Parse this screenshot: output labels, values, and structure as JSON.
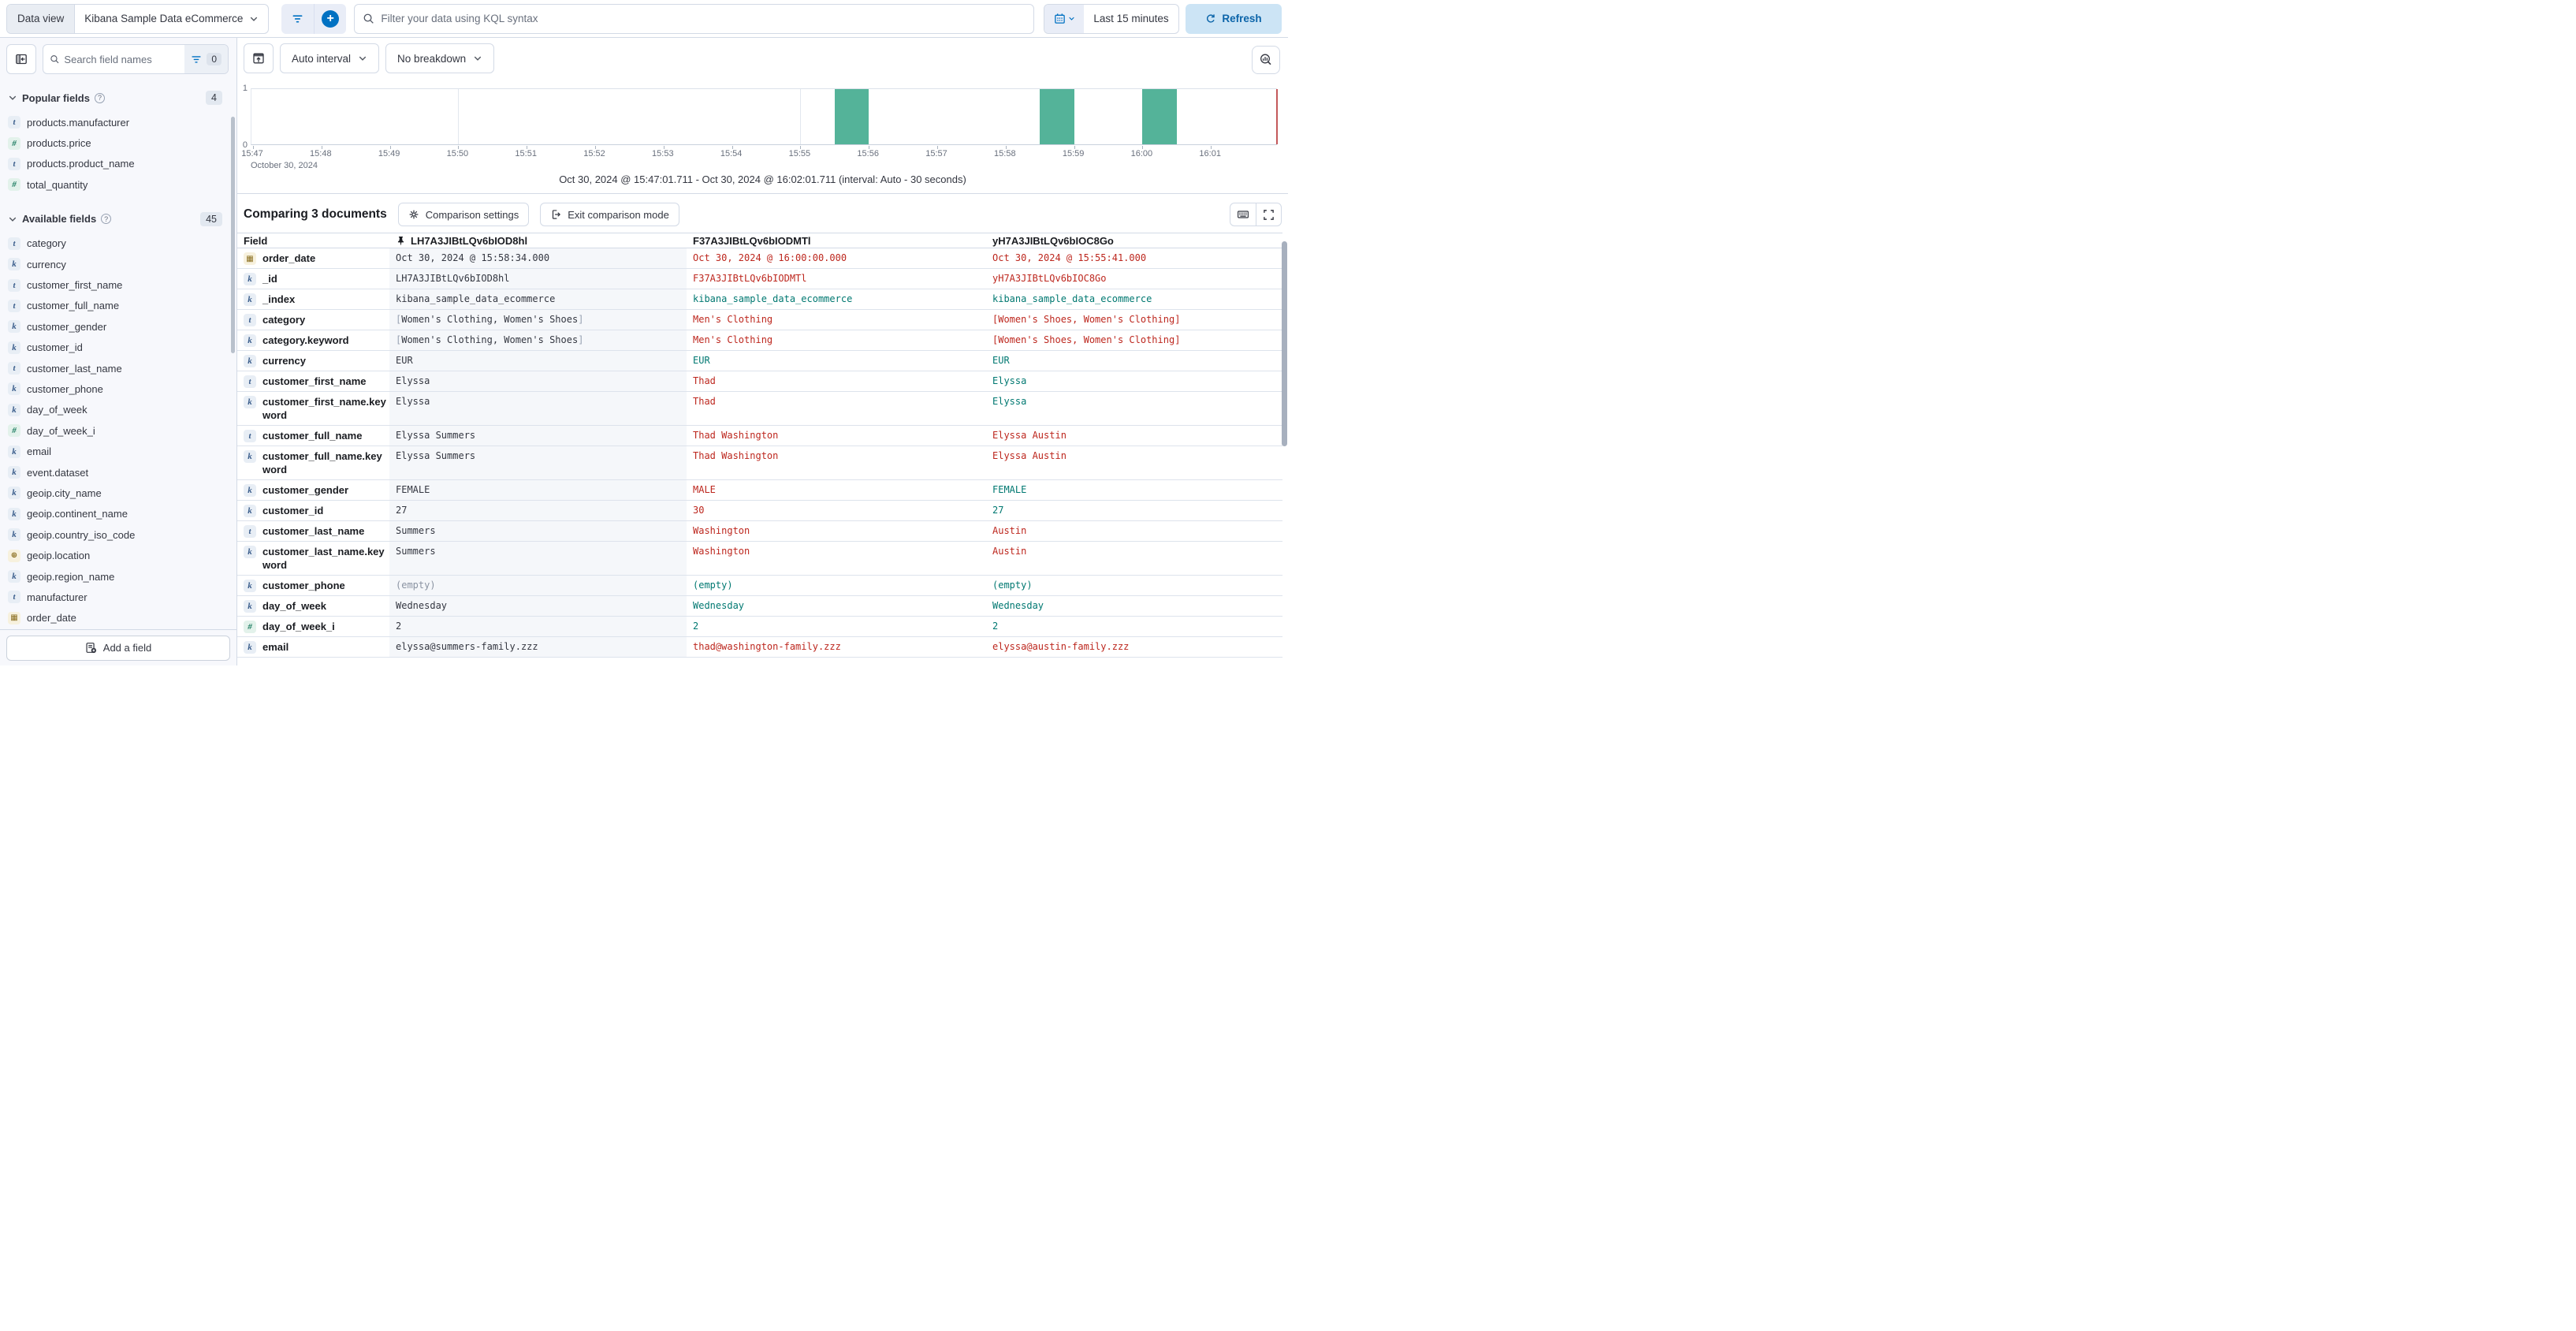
{
  "top_bar": {
    "data_view_label": "Data view",
    "data_view_value": "Kibana Sample Data eCommerce",
    "kql_placeholder": "Filter your data using KQL syntax",
    "time_range": "Last 15 minutes",
    "refresh_label": "Refresh"
  },
  "sidebar": {
    "search_placeholder": "Search field names",
    "filter_count": "0",
    "sections": [
      {
        "label": "Popular fields",
        "count": "4",
        "items": [
          {
            "type": "t",
            "name": "products.manufacturer"
          },
          {
            "type": "num",
            "name": "products.price"
          },
          {
            "type": "t",
            "name": "products.product_name"
          },
          {
            "type": "num",
            "name": "total_quantity"
          }
        ]
      },
      {
        "label": "Available fields",
        "count": "45",
        "items": [
          {
            "type": "t",
            "name": "category"
          },
          {
            "type": "k",
            "name": "currency"
          },
          {
            "type": "t",
            "name": "customer_first_name"
          },
          {
            "type": "t",
            "name": "customer_full_name"
          },
          {
            "type": "k",
            "name": "customer_gender"
          },
          {
            "type": "k",
            "name": "customer_id"
          },
          {
            "type": "t",
            "name": "customer_last_name"
          },
          {
            "type": "k",
            "name": "customer_phone"
          },
          {
            "type": "k",
            "name": "day_of_week"
          },
          {
            "type": "num",
            "name": "day_of_week_i"
          },
          {
            "type": "k",
            "name": "email"
          },
          {
            "type": "k",
            "name": "event.dataset"
          },
          {
            "type": "k",
            "name": "geoip.city_name"
          },
          {
            "type": "k",
            "name": "geoip.continent_name"
          },
          {
            "type": "k",
            "name": "geoip.country_iso_code"
          },
          {
            "type": "geo",
            "name": "geoip.location"
          },
          {
            "type": "k",
            "name": "geoip.region_name"
          },
          {
            "type": "t",
            "name": "manufacturer"
          },
          {
            "type": "date",
            "name": "order_date"
          }
        ]
      }
    ],
    "add_field_label": "Add a field"
  },
  "chart": {
    "interval_label": "Auto interval",
    "breakdown_label": "No breakdown",
    "y_ticks": [
      "1",
      "0"
    ],
    "x_ticks": [
      "15:47",
      "15:48",
      "15:49",
      "15:50",
      "15:51",
      "15:52",
      "15:53",
      "15:54",
      "15:55",
      "15:56",
      "15:57",
      "15:58",
      "15:59",
      "16:00",
      "16:01"
    ],
    "gridline_ticks": [
      3,
      8,
      13
    ],
    "x_date_label": "October 30, 2024",
    "range_label": "Oct 30, 2024 @ 15:47:01.711 - Oct 30, 2024 @ 16:02:01.711 (interval: Auto - 30 seconds)",
    "bar_color": "#54B399",
    "axis_start": "15:47:00",
    "axis_seconds": 900,
    "bars": [
      {
        "time": "15:55:30",
        "count": 1,
        "duration_s": 30
      },
      {
        "time": "15:58:30",
        "count": 1,
        "duration_s": 30
      },
      {
        "time": "16:00:00",
        "count": 1,
        "duration_s": 30
      }
    ]
  },
  "comparison": {
    "title": "Comparing 3 documents",
    "settings_label": "Comparison settings",
    "exit_label": "Exit comparison mode"
  },
  "table": {
    "field_header": "Field",
    "doc_ids": [
      "LH7A3JIBtLQv6bIOD8hl",
      "F37A3JIBtLQv6bIODMTl",
      "yH7A3JIBtLQv6bIOC8Go"
    ],
    "colors": {
      "diff": "#BD271E",
      "same": "#007871"
    },
    "rows": [
      {
        "icon": "date",
        "field": "order_date",
        "base": "Oct 30, 2024 @ 15:58:34.000",
        "docs": [
          {
            "t": "Oct 30, 2024 @ 16:00:00.000",
            "s": "diff"
          },
          {
            "t": "Oct 30, 2024 @ 15:55:41.000",
            "s": "diff"
          }
        ]
      },
      {
        "icon": "k",
        "field": "_id",
        "base": "LH7A3JIBtLQv6bIOD8hl",
        "docs": [
          {
            "t": "F37A3JIBtLQv6bIODMTl",
            "s": "diff"
          },
          {
            "t": "yH7A3JIBtLQv6bIOC8Go",
            "s": "diff"
          }
        ]
      },
      {
        "icon": "k",
        "field": "_index",
        "base": "kibana_sample_data_ecommerce",
        "docs": [
          {
            "t": "kibana_sample_data_ecommerce",
            "s": "same"
          },
          {
            "t": "kibana_sample_data_ecommerce",
            "s": "same"
          }
        ]
      },
      {
        "icon": "t",
        "field": "category",
        "base": "[Women's Clothing, Women's Shoes]",
        "docs": [
          {
            "t": "Men's Clothing",
            "s": "diff"
          },
          {
            "t": "[Women's Shoes, Women's Clothing]",
            "s": "diff"
          }
        ]
      },
      {
        "icon": "k",
        "field": "category.keyword",
        "base": "[Women's Clothing, Women's Shoes]",
        "docs": [
          {
            "t": "Men's Clothing",
            "s": "diff"
          },
          {
            "t": "[Women's Shoes, Women's Clothing]",
            "s": "diff"
          }
        ]
      },
      {
        "icon": "k",
        "field": "currency",
        "base": "EUR",
        "docs": [
          {
            "t": "EUR",
            "s": "same"
          },
          {
            "t": "EUR",
            "s": "same"
          }
        ]
      },
      {
        "icon": "t",
        "field": "customer_first_name",
        "base": "Elyssa",
        "docs": [
          {
            "t": "Thad",
            "s": "diff"
          },
          {
            "t": "Elyssa",
            "s": "same"
          }
        ]
      },
      {
        "icon": "k",
        "field": "customer_first_name.keyword",
        "tall": true,
        "base": "Elyssa",
        "docs": [
          {
            "t": "Thad",
            "s": "diff"
          },
          {
            "t": "Elyssa",
            "s": "same"
          }
        ]
      },
      {
        "icon": "t",
        "field": "customer_full_name",
        "base": "Elyssa Summers",
        "docs": [
          {
            "t": "Thad Washington",
            "s": "diff"
          },
          {
            "t": "Elyssa Austin",
            "s": "diff"
          }
        ]
      },
      {
        "icon": "k",
        "field": "customer_full_name.keyword",
        "tall": true,
        "base": "Elyssa Summers",
        "docs": [
          {
            "t": "Thad Washington",
            "s": "diff"
          },
          {
            "t": "Elyssa Austin",
            "s": "diff"
          }
        ]
      },
      {
        "icon": "k",
        "field": "customer_gender",
        "base": "FEMALE",
        "docs": [
          {
            "t": "MALE",
            "s": "diff"
          },
          {
            "t": "FEMALE",
            "s": "same"
          }
        ]
      },
      {
        "icon": "k",
        "field": "customer_id",
        "base": "27",
        "docs": [
          {
            "t": "30",
            "s": "diff"
          },
          {
            "t": "27",
            "s": "same"
          }
        ]
      },
      {
        "icon": "t",
        "field": "customer_last_name",
        "base": "Summers",
        "docs": [
          {
            "t": "Washington",
            "s": "diff"
          },
          {
            "t": "Austin",
            "s": "diff"
          }
        ]
      },
      {
        "icon": "k",
        "field": "customer_last_name.keyword",
        "tall": true,
        "base": "Summers",
        "docs": [
          {
            "t": "Washington",
            "s": "diff"
          },
          {
            "t": "Austin",
            "s": "diff"
          }
        ]
      },
      {
        "icon": "k",
        "field": "customer_phone",
        "base": "(empty)",
        "base_status": "empty",
        "docs": [
          {
            "t": "(empty)",
            "s": "same"
          },
          {
            "t": "(empty)",
            "s": "same"
          }
        ]
      },
      {
        "icon": "k",
        "field": "day_of_week",
        "base": "Wednesday",
        "docs": [
          {
            "t": "Wednesday",
            "s": "same"
          },
          {
            "t": "Wednesday",
            "s": "same"
          }
        ]
      },
      {
        "icon": "num",
        "field": "day_of_week_i",
        "base": "2",
        "docs": [
          {
            "t": "2",
            "s": "same"
          },
          {
            "t": "2",
            "s": "same"
          }
        ]
      },
      {
        "icon": "k",
        "field": "email",
        "base": "elyssa@summers-family.zzz",
        "docs": [
          {
            "t": "thad@washington-family.zzz",
            "s": "diff"
          },
          {
            "t": "elyssa@austin-family.zzz",
            "s": "diff"
          }
        ]
      }
    ]
  },
  "icon_glyphs": {
    "t": "t",
    "k": "k",
    "num": "#",
    "date": "▦",
    "geo": "⊕"
  }
}
